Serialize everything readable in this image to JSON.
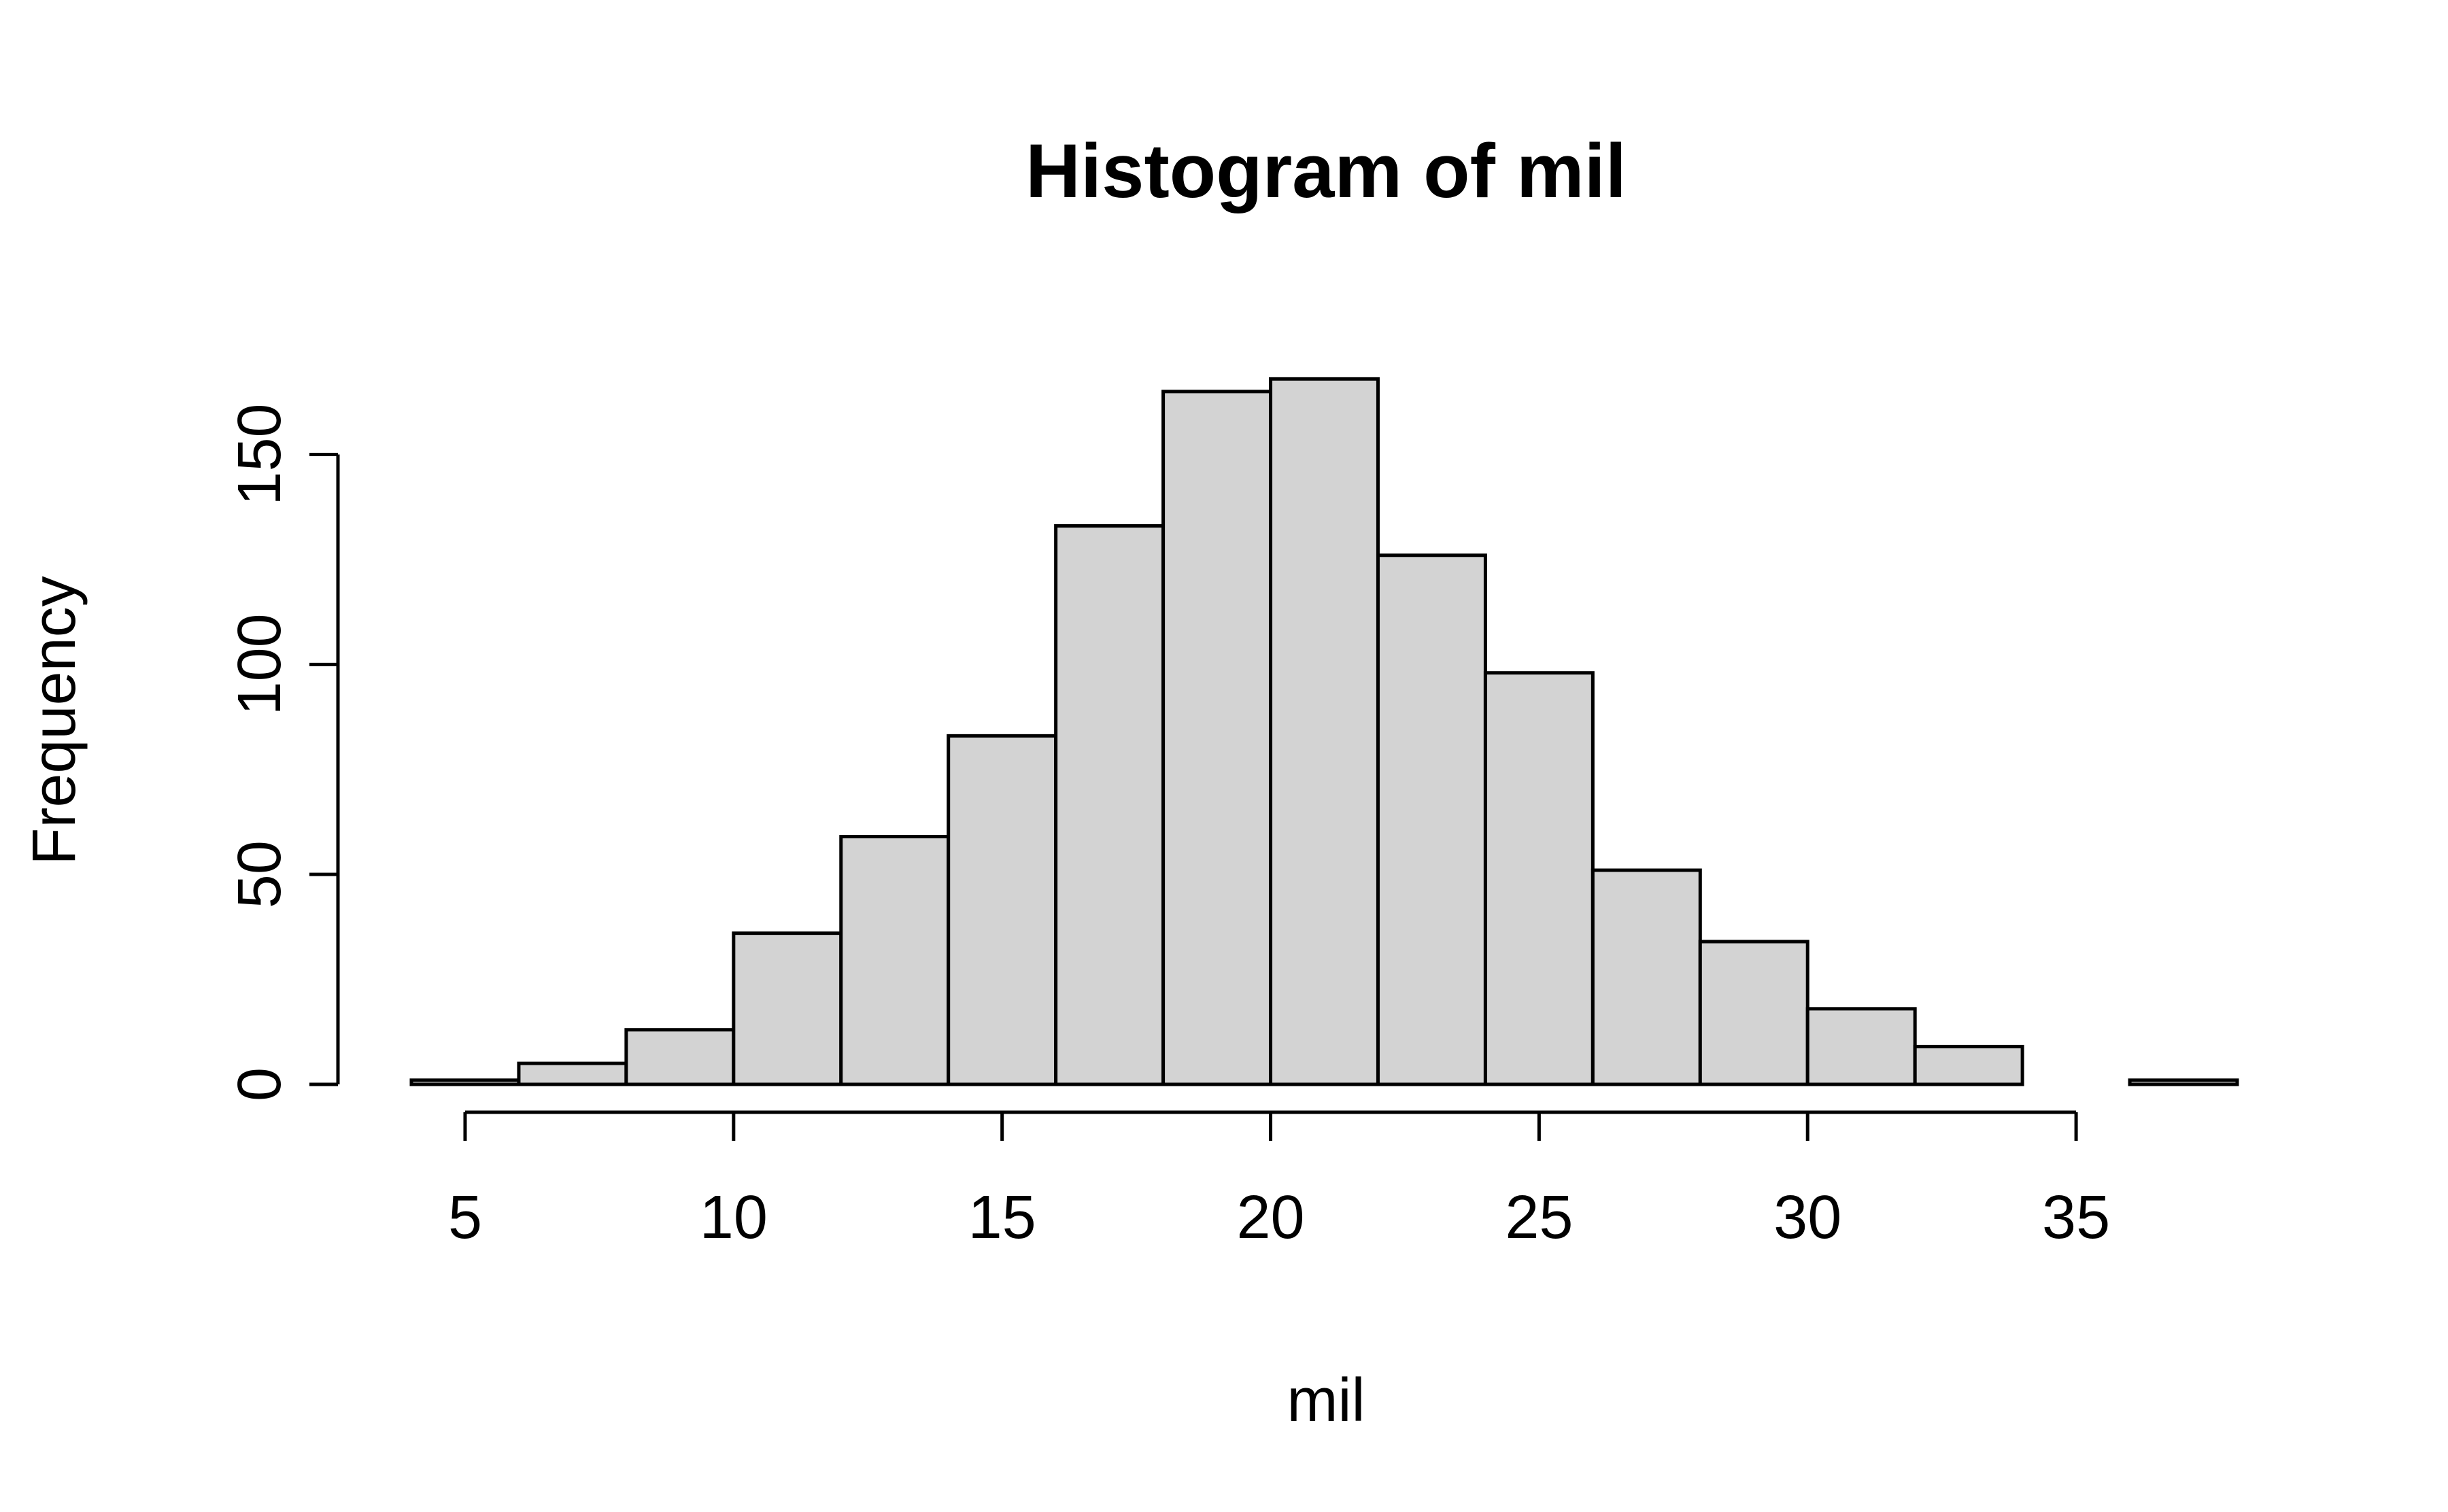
{
  "chart_data": {
    "type": "bar",
    "title": "Histogram of mil",
    "xlabel": "mil",
    "ylabel": "Frequency",
    "bin_edges": [
      4,
      6,
      8,
      10,
      12,
      14,
      16,
      18,
      20,
      22,
      24,
      26,
      28,
      30,
      32,
      34,
      36,
      38
    ],
    "values": [
      1,
      5,
      13,
      36,
      59,
      83,
      133,
      165,
      168,
      126,
      98,
      51,
      34,
      18,
      9,
      0,
      1
    ],
    "xlim": [
      4,
      38
    ],
    "ylim": [
      0,
      170
    ],
    "x_ticks": [
      5,
      10,
      15,
      20,
      25,
      30,
      35
    ],
    "x_tick_labels": [
      "5",
      "10",
      "15",
      "20",
      "25",
      "30",
      "35"
    ],
    "y_ticks": [
      0,
      50,
      100,
      150
    ],
    "y_tick_labels": [
      "0",
      "50",
      "100",
      "150"
    ],
    "bar_color": "#d3d3d3",
    "grid": false,
    "legend": "none"
  }
}
